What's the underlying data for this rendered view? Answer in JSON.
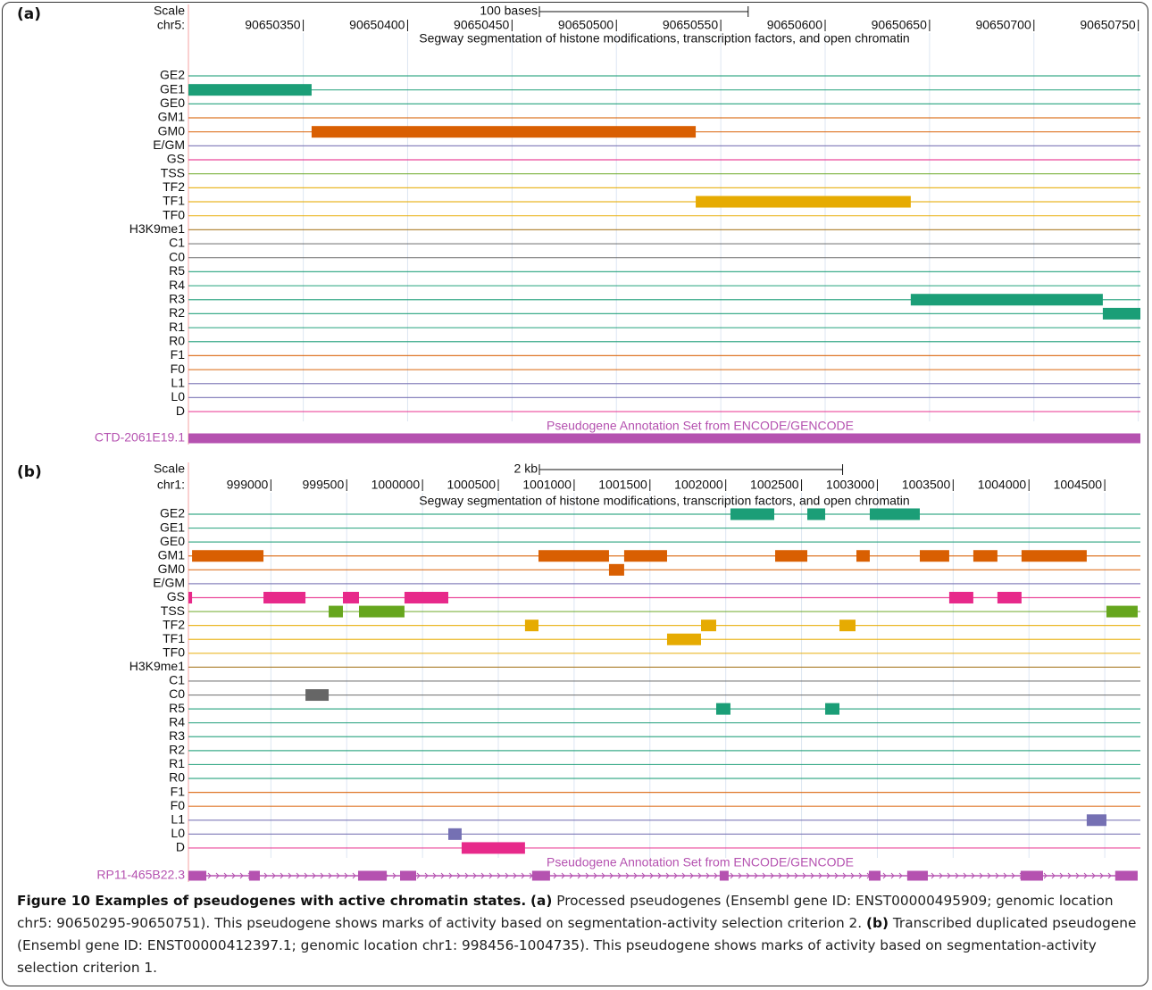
{
  "caption": {
    "title": "Figure 10 Examples of pseudogenes with active chromatin states.",
    "parts": [
      {
        "label": "(a)",
        "text": "Processed pseudogenes (Ensembl gene ID: ENST00000495909; genomic location chr5: 90650295-90650751). This pseudogene shows marks of activity based on segmentation-activity selection criterion 2."
      },
      {
        "label": "(b)",
        "text": "Transcribed duplicated pseudogene (Ensembl gene ID: ENST00000412397.1; genomic location chr1: 998456-1004735). This pseudogene shows marks of activity based on segmentation-activity selection criterion 1."
      }
    ]
  },
  "panels": [
    {
      "label": "(a)",
      "scale_label": "Scale",
      "scale_bar": {
        "value": 100,
        "label": "100 bases"
      },
      "chrom": "chr5:",
      "xlim": [
        90650295,
        90650751
      ],
      "xticks": [
        90650350,
        90650400,
        90650450,
        90650500,
        90650550,
        90650600,
        90650650,
        90650700,
        90650750
      ],
      "track_title": "Segway segmentation of histone modifications, transcription factors, and open chromatin",
      "states": [
        {
          "name": "GE2",
          "color": "#1b9e77"
        },
        {
          "name": "GE1",
          "color": "#1b9e77"
        },
        {
          "name": "GE0",
          "color": "#1b9e77"
        },
        {
          "name": "GM1",
          "color": "#d95f02"
        },
        {
          "name": "GM0",
          "color": "#d95f02"
        },
        {
          "name": "E/GM",
          "color": "#7570b3"
        },
        {
          "name": "GS",
          "color": "#e7298a"
        },
        {
          "name": "TSS",
          "color": "#66a61e"
        },
        {
          "name": "TF2",
          "color": "#e6ab02"
        },
        {
          "name": "TF1",
          "color": "#e6ab02"
        },
        {
          "name": "TF0",
          "color": "#e6ab02"
        },
        {
          "name": "H3K9me1",
          "color": "#a6761d"
        },
        {
          "name": "C1",
          "color": "#666666"
        },
        {
          "name": "C0",
          "color": "#666666"
        },
        {
          "name": "R5",
          "color": "#1b9e77"
        },
        {
          "name": "R4",
          "color": "#1b9e77"
        },
        {
          "name": "R3",
          "color": "#1b9e77"
        },
        {
          "name": "R2",
          "color": "#1b9e77"
        },
        {
          "name": "R1",
          "color": "#1b9e77"
        },
        {
          "name": "R0",
          "color": "#1b9e77"
        },
        {
          "name": "F1",
          "color": "#d95f02"
        },
        {
          "name": "F0",
          "color": "#d95f02"
        },
        {
          "name": "L1",
          "color": "#7570b3"
        },
        {
          "name": "L0",
          "color": "#7570b3"
        },
        {
          "name": "D",
          "color": "#e7298a"
        }
      ],
      "segments": [
        {
          "state": "GE1",
          "start": 90650295,
          "end": 90650354
        },
        {
          "state": "GM0",
          "start": 90650354,
          "end": 90650538
        },
        {
          "state": "TF1",
          "start": 90650538,
          "end": 90650641
        },
        {
          "state": "R3",
          "start": 90650641,
          "end": 90650733
        },
        {
          "state": "R2",
          "start": 90650733,
          "end": 90650751
        }
      ],
      "annotation_title": "Pseudogene Annotation Set from ENCODE/GENCODE",
      "gene": {
        "name": "CTD-2061E19.1",
        "color": "#b552b0",
        "exons": [
          {
            "start": 90650295,
            "end": 90650751
          }
        ]
      }
    },
    {
      "label": "(b)",
      "scale_label": "Scale",
      "scale_bar": {
        "value": 2000,
        "label": "2 kb"
      },
      "chrom": "chr1:",
      "xlim": [
        998456,
        1004735
      ],
      "xticks": [
        999000,
        999500,
        1000000,
        1000500,
        1001000,
        1001500,
        1002000,
        1002500,
        1003000,
        1003500,
        1004000,
        1004500
      ],
      "track_title": "Segway segmentation of histone modifications, transcription factors, and open chromatin",
      "states": [
        {
          "name": "GE2",
          "color": "#1b9e77"
        },
        {
          "name": "GE1",
          "color": "#1b9e77"
        },
        {
          "name": "GE0",
          "color": "#1b9e77"
        },
        {
          "name": "GM1",
          "color": "#d95f02"
        },
        {
          "name": "GM0",
          "color": "#d95f02"
        },
        {
          "name": "E/GM",
          "color": "#7570b3"
        },
        {
          "name": "GS",
          "color": "#e7298a"
        },
        {
          "name": "TSS",
          "color": "#66a61e"
        },
        {
          "name": "TF2",
          "color": "#e6ab02"
        },
        {
          "name": "TF1",
          "color": "#e6ab02"
        },
        {
          "name": "TF0",
          "color": "#e6ab02"
        },
        {
          "name": "H3K9me1",
          "color": "#a6761d"
        },
        {
          "name": "C1",
          "color": "#666666"
        },
        {
          "name": "C0",
          "color": "#666666"
        },
        {
          "name": "R5",
          "color": "#1b9e77"
        },
        {
          "name": "R4",
          "color": "#1b9e77"
        },
        {
          "name": "R3",
          "color": "#1b9e77"
        },
        {
          "name": "R2",
          "color": "#1b9e77"
        },
        {
          "name": "R1",
          "color": "#1b9e77"
        },
        {
          "name": "R0",
          "color": "#1b9e77"
        },
        {
          "name": "F1",
          "color": "#d95f02"
        },
        {
          "name": "F0",
          "color": "#d95f02"
        },
        {
          "name": "L1",
          "color": "#7570b3"
        },
        {
          "name": "L0",
          "color": "#7570b3"
        },
        {
          "name": "D",
          "color": "#e7298a"
        }
      ],
      "segments": [
        {
          "state": "GE2",
          "start": 1002031,
          "end": 1002320
        },
        {
          "state": "GE2",
          "start": 1002538,
          "end": 1002656
        },
        {
          "state": "GE2",
          "start": 1002950,
          "end": 1003280
        },
        {
          "state": "GM1",
          "start": 998480,
          "end": 998951
        },
        {
          "state": "GM1",
          "start": 1000765,
          "end": 1001230
        },
        {
          "state": "GM1",
          "start": 1001330,
          "end": 1001613
        },
        {
          "state": "GM1",
          "start": 1002326,
          "end": 1002538
        },
        {
          "state": "GM1",
          "start": 1002862,
          "end": 1002950
        },
        {
          "state": "GM1",
          "start": 1003280,
          "end": 1003474
        },
        {
          "state": "GM1",
          "start": 1003633,
          "end": 1003792
        },
        {
          "state": "GM1",
          "start": 1003951,
          "end": 1004381
        },
        {
          "state": "GM0",
          "start": 1001230,
          "end": 1001330
        },
        {
          "state": "GS",
          "start": 998456,
          "end": 998480
        },
        {
          "state": "GS",
          "start": 998951,
          "end": 999228
        },
        {
          "state": "GS",
          "start": 999475,
          "end": 999581
        },
        {
          "state": "GS",
          "start": 999881,
          "end": 1000170
        },
        {
          "state": "GS",
          "start": 1003474,
          "end": 1003633
        },
        {
          "state": "GS",
          "start": 1003792,
          "end": 1003951
        },
        {
          "state": "TSS",
          "start": 999381,
          "end": 999475
        },
        {
          "state": "TSS",
          "start": 999581,
          "end": 999881
        },
        {
          "state": "TSS",
          "start": 1004511,
          "end": 1004717
        },
        {
          "state": "TF2",
          "start": 1000676,
          "end": 1000765
        },
        {
          "state": "TF2",
          "start": 1001837,
          "end": 1001937
        },
        {
          "state": "TF2",
          "start": 1002750,
          "end": 1002856
        },
        {
          "state": "TF1",
          "start": 1001613,
          "end": 1001837
        },
        {
          "state": "C0",
          "start": 999228,
          "end": 999381
        },
        {
          "state": "R5",
          "start": 1001937,
          "end": 1002031
        },
        {
          "state": "R5",
          "start": 1002656,
          "end": 1002750
        },
        {
          "state": "L1",
          "start": 1004381,
          "end": 1004511
        },
        {
          "state": "L0",
          "start": 1000170,
          "end": 1000258
        },
        {
          "state": "D",
          "start": 1000258,
          "end": 1000676
        }
      ],
      "annotation_title": "Pseudogene Annotation Set from ENCODE/GENCODE",
      "gene": {
        "name": "RP11-465B22.3",
        "color": "#b552b0",
        "exons": [
          {
            "start": 998456,
            "end": 998574
          },
          {
            "start": 998856,
            "end": 998927
          },
          {
            "start": 999575,
            "end": 999764
          },
          {
            "start": 999852,
            "end": 999958
          },
          {
            "start": 1000723,
            "end": 1000841
          },
          {
            "start": 1001960,
            "end": 1002019
          },
          {
            "start": 1002944,
            "end": 1003021
          },
          {
            "start": 1003197,
            "end": 1003333
          },
          {
            "start": 1003945,
            "end": 1004093
          },
          {
            "start": 1004569,
            "end": 1004717
          }
        ]
      }
    }
  ]
}
